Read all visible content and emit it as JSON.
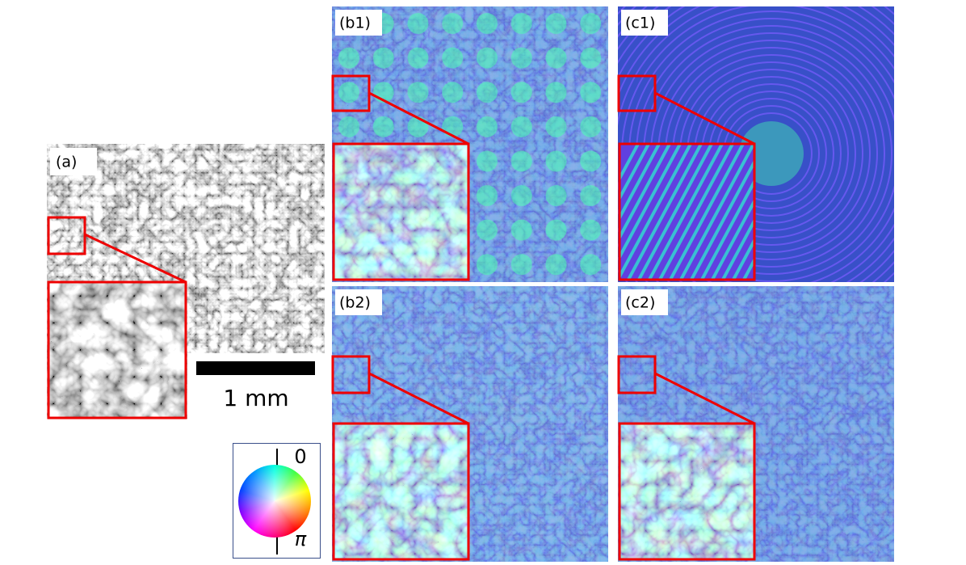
{
  "panels": {
    "a": {
      "label": "(a)",
      "scale_bar": "1 mm"
    },
    "b1": {
      "label": "(b1)"
    },
    "c1": {
      "label": "(c1)"
    },
    "b2": {
      "label": "(b2)"
    },
    "c2": {
      "label": "(c2)"
    }
  },
  "color_wheel": {
    "top_label": "0",
    "bottom_label": "π"
  }
}
